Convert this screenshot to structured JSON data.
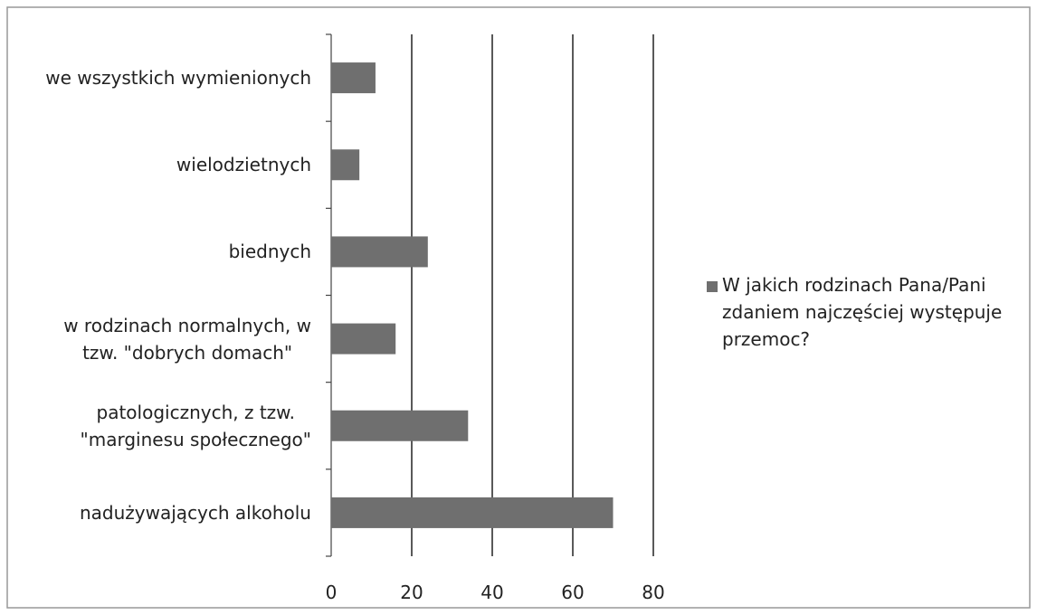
{
  "chart_data": {
    "type": "bar",
    "orientation": "horizontal",
    "categories": [
      "we wszystkich wymienionych",
      "wielodzietnych",
      "biednych",
      "w rodzinach normalnych, w\ntzw. \"dobrych domach\"",
      "patologicznych, z tzw.\n\"marginesu społecznego\"",
      "nadużywających alkoholu"
    ],
    "series": [
      {
        "name": "W jakich rodzinach Pana/Pani\nzdaniem najczęściej występuje\nprzemoc?",
        "color": "#6f6f6f",
        "values": [
          11,
          7,
          24,
          16,
          34,
          70
        ]
      }
    ],
    "xlim": [
      0,
      80
    ],
    "xticks": [
      0,
      20,
      40,
      60,
      80
    ],
    "grid": true,
    "legend": "right"
  }
}
